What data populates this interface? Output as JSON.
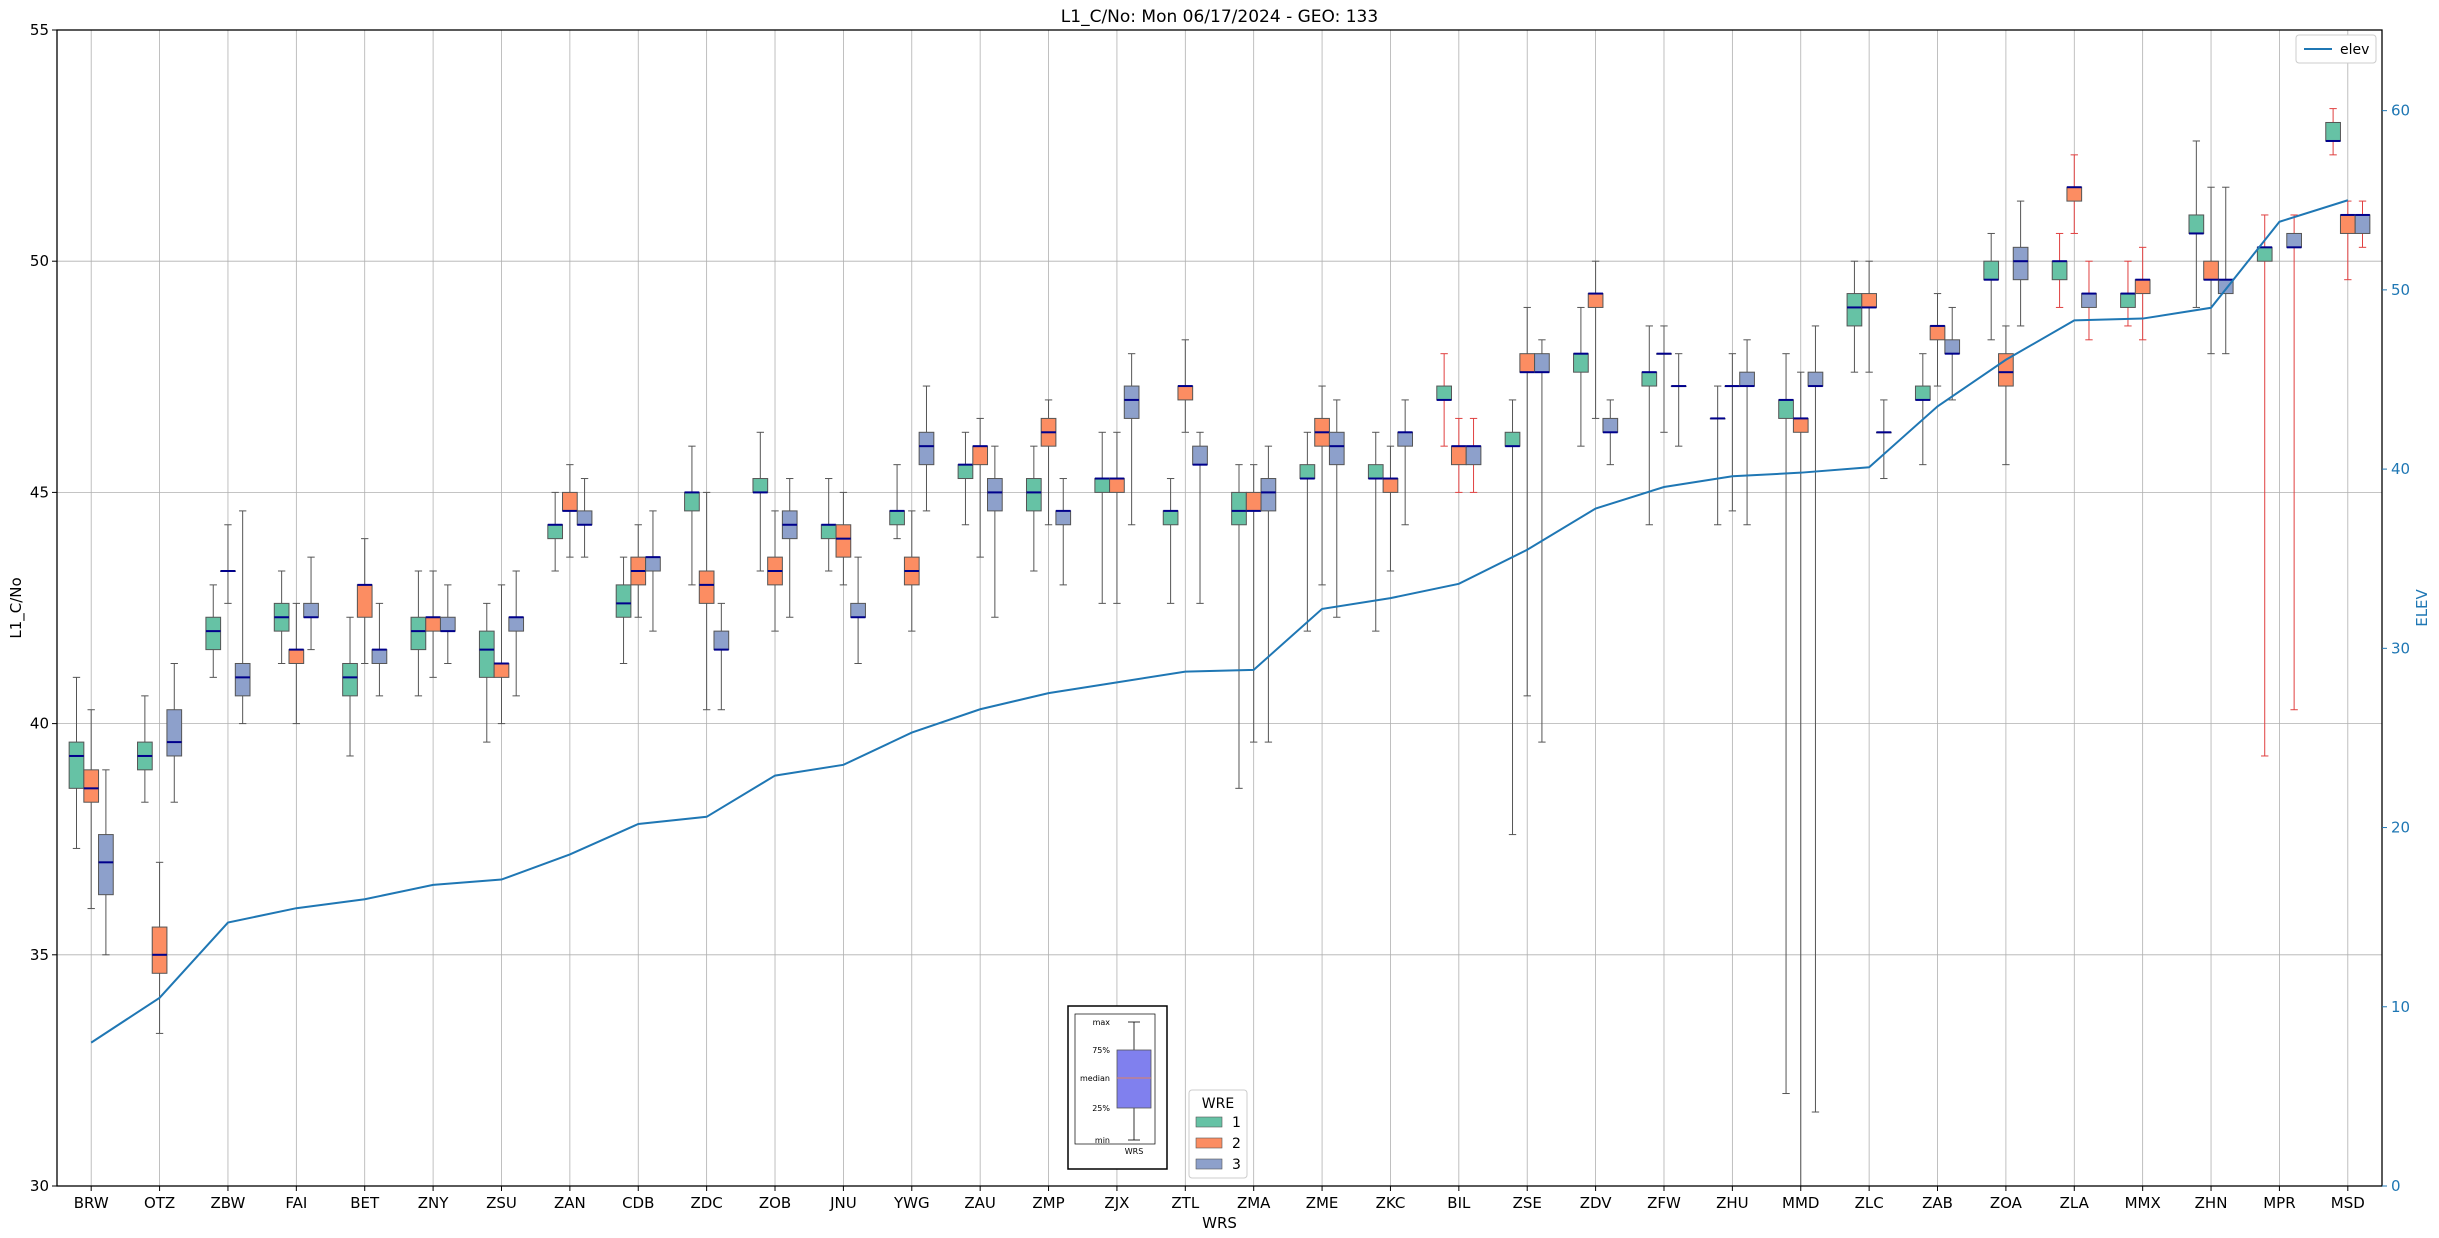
{
  "chart_data": {
    "type": "box",
    "title": "L1_C/No: Mon 06/17/2024 - GEO: 133",
    "xlabel": "WRS",
    "ylabel": "L1_C/No",
    "y2label": "ELEV",
    "ylim": [
      30,
      55
    ],
    "y2lim": [
      0,
      64.5
    ],
    "yticks": [
      30,
      35,
      40,
      45,
      50,
      55
    ],
    "y2ticks": [
      0,
      10,
      20,
      30,
      40,
      50,
      60
    ],
    "grid": true,
    "categories": [
      "BRW",
      "OTZ",
      "ZBW",
      "FAI",
      "BET",
      "ZNY",
      "ZSU",
      "ZAN",
      "CDB",
      "ZDC",
      "ZOB",
      "JNU",
      "YWG",
      "ZAU",
      "ZMP",
      "ZJX",
      "ZTL",
      "ZMA",
      "ZME",
      "ZKC",
      "BIL",
      "ZSE",
      "ZDV",
      "ZFW",
      "ZHU",
      "MMD",
      "ZLC",
      "ZAB",
      "ZOA",
      "ZLA",
      "MMX",
      "ZHN",
      "MPR",
      "MSD"
    ],
    "wre_series": [
      {
        "name": "1",
        "color": "#66c2a5"
      },
      {
        "name": "2",
        "color": "#fc8d62"
      },
      {
        "name": "3",
        "color": "#8da0cb"
      }
    ],
    "boxes": [
      {
        "cat": "BRW",
        "wre": 1,
        "min": 37.3,
        "q1": 38.6,
        "median": 39.3,
        "q3": 39.6,
        "max": 41.0
      },
      {
        "cat": "BRW",
        "wre": 2,
        "min": 36.0,
        "q1": 38.3,
        "median": 38.6,
        "q3": 39.0,
        "max": 40.3
      },
      {
        "cat": "BRW",
        "wre": 3,
        "min": 35.0,
        "q1": 36.3,
        "median": 37.0,
        "q3": 37.6,
        "max": 39.0
      },
      {
        "cat": "OTZ",
        "wre": 1,
        "min": 38.3,
        "q1": 39.0,
        "median": 39.3,
        "q3": 39.6,
        "max": 40.6
      },
      {
        "cat": "OTZ",
        "wre": 2,
        "min": 33.3,
        "q1": 34.6,
        "median": 35.0,
        "q3": 35.6,
        "max": 37.0
      },
      {
        "cat": "OTZ",
        "wre": 3,
        "min": 38.3,
        "q1": 39.3,
        "median": 39.6,
        "q3": 40.3,
        "max": 41.3
      },
      {
        "cat": "ZBW",
        "wre": 1,
        "min": 41.0,
        "q1": 41.6,
        "median": 42.0,
        "q3": 42.3,
        "max": 43.0
      },
      {
        "cat": "ZBW",
        "wre": 2,
        "min": 42.6,
        "q1": 43.3,
        "median": 43.3,
        "q3": 43.3,
        "max": 44.3
      },
      {
        "cat": "ZBW",
        "wre": 3,
        "min": 40.0,
        "q1": 40.6,
        "median": 41.0,
        "q3": 41.3,
        "max": 44.6
      },
      {
        "cat": "FAI",
        "wre": 1,
        "min": 41.3,
        "q1": 42.0,
        "median": 42.3,
        "q3": 42.6,
        "max": 43.3
      },
      {
        "cat": "FAI",
        "wre": 2,
        "min": 40.0,
        "q1": 41.3,
        "median": 41.6,
        "q3": 41.6,
        "max": 42.6
      },
      {
        "cat": "FAI",
        "wre": 3,
        "min": 41.6,
        "q1": 42.3,
        "median": 42.3,
        "q3": 42.6,
        "max": 43.6
      },
      {
        "cat": "BET",
        "wre": 1,
        "min": 39.3,
        "q1": 40.6,
        "median": 41.0,
        "q3": 41.3,
        "max": 42.3
      },
      {
        "cat": "BET",
        "wre": 2,
        "min": 41.3,
        "q1": 42.3,
        "median": 43.0,
        "q3": 43.0,
        "max": 44.0
      },
      {
        "cat": "BET",
        "wre": 3,
        "min": 40.6,
        "q1": 41.3,
        "median": 41.6,
        "q3": 41.6,
        "max": 42.6
      },
      {
        "cat": "ZNY",
        "wre": 1,
        "min": 40.6,
        "q1": 41.6,
        "median": 42.0,
        "q3": 42.3,
        "max": 43.3
      },
      {
        "cat": "ZNY",
        "wre": 2,
        "min": 41.0,
        "q1": 42.0,
        "median": 42.3,
        "q3": 42.3,
        "max": 43.3
      },
      {
        "cat": "ZNY",
        "wre": 3,
        "min": 41.3,
        "q1": 42.0,
        "median": 42.0,
        "q3": 42.3,
        "max": 43.0
      },
      {
        "cat": "ZSU",
        "wre": 1,
        "min": 39.6,
        "q1": 41.0,
        "median": 41.6,
        "q3": 42.0,
        "max": 42.6
      },
      {
        "cat": "ZSU",
        "wre": 2,
        "min": 40.0,
        "q1": 41.0,
        "median": 41.3,
        "q3": 41.3,
        "max": 43.0
      },
      {
        "cat": "ZSU",
        "wre": 3,
        "min": 40.6,
        "q1": 42.0,
        "median": 42.3,
        "q3": 42.3,
        "max": 43.3
      },
      {
        "cat": "ZAN",
        "wre": 1,
        "min": 43.3,
        "q1": 44.0,
        "median": 44.3,
        "q3": 44.3,
        "max": 45.0
      },
      {
        "cat": "ZAN",
        "wre": 2,
        "min": 43.6,
        "q1": 44.6,
        "median": 44.6,
        "q3": 45.0,
        "max": 45.6
      },
      {
        "cat": "ZAN",
        "wre": 3,
        "min": 43.6,
        "q1": 44.3,
        "median": 44.3,
        "q3": 44.6,
        "max": 45.3
      },
      {
        "cat": "CDB",
        "wre": 1,
        "min": 41.3,
        "q1": 42.3,
        "median": 42.6,
        "q3": 43.0,
        "max": 43.6
      },
      {
        "cat": "CDB",
        "wre": 2,
        "min": 42.3,
        "q1": 43.0,
        "median": 43.3,
        "q3": 43.6,
        "max": 44.3
      },
      {
        "cat": "CDB",
        "wre": 3,
        "min": 42.0,
        "q1": 43.3,
        "median": 43.6,
        "q3": 43.6,
        "max": 44.6
      },
      {
        "cat": "ZDC",
        "wre": 1,
        "min": 43.0,
        "q1": 44.6,
        "median": 45.0,
        "q3": 45.0,
        "max": 46.0
      },
      {
        "cat": "ZDC",
        "wre": 2,
        "min": 40.3,
        "q1": 42.6,
        "median": 43.0,
        "q3": 43.3,
        "max": 45.0
      },
      {
        "cat": "ZDC",
        "wre": 3,
        "min": 40.3,
        "q1": 41.6,
        "median": 41.6,
        "q3": 42.0,
        "max": 42.6
      },
      {
        "cat": "ZOB",
        "wre": 1,
        "min": 43.3,
        "q1": 45.0,
        "median": 45.0,
        "q3": 45.3,
        "max": 46.3
      },
      {
        "cat": "ZOB",
        "wre": 2,
        "min": 42.0,
        "q1": 43.0,
        "median": 43.3,
        "q3": 43.6,
        "max": 44.6
      },
      {
        "cat": "ZOB",
        "wre": 3,
        "min": 42.3,
        "q1": 44.0,
        "median": 44.3,
        "q3": 44.6,
        "max": 45.3
      },
      {
        "cat": "JNU",
        "wre": 1,
        "min": 43.3,
        "q1": 44.0,
        "median": 44.3,
        "q3": 44.3,
        "max": 45.3
      },
      {
        "cat": "JNU",
        "wre": 2,
        "min": 43.0,
        "q1": 43.6,
        "median": 44.0,
        "q3": 44.3,
        "max": 45.0
      },
      {
        "cat": "JNU",
        "wre": 3,
        "min": 41.3,
        "q1": 42.3,
        "median": 42.3,
        "q3": 42.6,
        "max": 43.6
      },
      {
        "cat": "YWG",
        "wre": 1,
        "min": 44.0,
        "q1": 44.3,
        "median": 44.6,
        "q3": 44.6,
        "max": 45.6
      },
      {
        "cat": "YWG",
        "wre": 2,
        "min": 42.0,
        "q1": 43.0,
        "median": 43.3,
        "q3": 43.6,
        "max": 44.6
      },
      {
        "cat": "YWG",
        "wre": 3,
        "min": 44.6,
        "q1": 45.6,
        "median": 46.0,
        "q3": 46.3,
        "max": 47.3
      },
      {
        "cat": "ZAU",
        "wre": 1,
        "min": 44.3,
        "q1": 45.3,
        "median": 45.6,
        "q3": 45.6,
        "max": 46.3
      },
      {
        "cat": "ZAU",
        "wre": 2,
        "min": 43.6,
        "q1": 45.6,
        "median": 46.0,
        "q3": 46.0,
        "max": 46.6
      },
      {
        "cat": "ZAU",
        "wre": 3,
        "min": 42.3,
        "q1": 44.6,
        "median": 45.0,
        "q3": 45.3,
        "max": 46.0
      },
      {
        "cat": "ZMP",
        "wre": 1,
        "min": 43.3,
        "q1": 44.6,
        "median": 45.0,
        "q3": 45.3,
        "max": 46.0
      },
      {
        "cat": "ZMP",
        "wre": 2,
        "min": 44.3,
        "q1": 46.0,
        "median": 46.3,
        "q3": 46.6,
        "max": 47.0
      },
      {
        "cat": "ZMP",
        "wre": 3,
        "min": 43.0,
        "q1": 44.3,
        "median": 44.6,
        "q3": 44.6,
        "max": 45.3
      },
      {
        "cat": "ZJX",
        "wre": 1,
        "min": 42.6,
        "q1": 45.0,
        "median": 45.3,
        "q3": 45.3,
        "max": 46.3
      },
      {
        "cat": "ZJX",
        "wre": 2,
        "min": 42.6,
        "q1": 45.0,
        "median": 45.3,
        "q3": 45.3,
        "max": 46.3
      },
      {
        "cat": "ZJX",
        "wre": 3,
        "min": 44.3,
        "q1": 46.6,
        "median": 47.0,
        "q3": 47.3,
        "max": 48.0
      },
      {
        "cat": "ZTL",
        "wre": 1,
        "min": 42.6,
        "q1": 44.3,
        "median": 44.6,
        "q3": 44.6,
        "max": 45.3
      },
      {
        "cat": "ZTL",
        "wre": 2,
        "min": 46.3,
        "q1": 47.0,
        "median": 47.3,
        "q3": 47.3,
        "max": 48.3
      },
      {
        "cat": "ZTL",
        "wre": 3,
        "min": 42.6,
        "q1": 45.6,
        "median": 45.6,
        "q3": 46.0,
        "max": 46.3
      },
      {
        "cat": "ZMA",
        "wre": 1,
        "min": 38.6,
        "q1": 44.3,
        "median": 44.6,
        "q3": 45.0,
        "max": 45.6
      },
      {
        "cat": "ZMA",
        "wre": 2,
        "min": 39.6,
        "q1": 44.6,
        "median": 44.6,
        "q3": 45.0,
        "max": 45.6
      },
      {
        "cat": "ZMA",
        "wre": 3,
        "min": 39.6,
        "q1": 44.6,
        "median": 45.0,
        "q3": 45.3,
        "max": 46.0
      },
      {
        "cat": "ZME",
        "wre": 1,
        "min": 42.0,
        "q1": 45.3,
        "median": 45.3,
        "q3": 45.6,
        "max": 46.3
      },
      {
        "cat": "ZME",
        "wre": 2,
        "min": 43.0,
        "q1": 46.0,
        "median": 46.3,
        "q3": 46.6,
        "max": 47.3
      },
      {
        "cat": "ZME",
        "wre": 3,
        "min": 42.3,
        "q1": 45.6,
        "median": 46.0,
        "q3": 46.3,
        "max": 47.0
      },
      {
        "cat": "ZKC",
        "wre": 1,
        "min": 42.0,
        "q1": 45.3,
        "median": 45.3,
        "q3": 45.6,
        "max": 46.3
      },
      {
        "cat": "ZKC",
        "wre": 2,
        "min": 43.3,
        "q1": 45.0,
        "median": 45.3,
        "q3": 45.3,
        "max": 46.0
      },
      {
        "cat": "ZKC",
        "wre": 3,
        "min": 44.3,
        "q1": 46.0,
        "median": 46.3,
        "q3": 46.3,
        "max": 47.0
      },
      {
        "cat": "BIL",
        "wre": 1,
        "min": 46.0,
        "q1": 47.0,
        "median": 47.0,
        "q3": 47.3,
        "max": 48.0
      },
      {
        "cat": "BIL",
        "wre": 2,
        "min": 45.0,
        "q1": 45.6,
        "median": 46.0,
        "q3": 46.0,
        "max": 46.6
      },
      {
        "cat": "BIL",
        "wre": 3,
        "min": 45.0,
        "q1": 45.6,
        "median": 46.0,
        "q3": 46.0,
        "max": 46.6
      },
      {
        "cat": "ZSE",
        "wre": 1,
        "min": 37.6,
        "q1": 46.0,
        "median": 46.0,
        "q3": 46.3,
        "max": 47.0
      },
      {
        "cat": "ZSE",
        "wre": 2,
        "min": 40.6,
        "q1": 47.6,
        "median": 47.6,
        "q3": 48.0,
        "max": 49.0
      },
      {
        "cat": "ZSE",
        "wre": 3,
        "min": 39.6,
        "q1": 47.6,
        "median": 47.6,
        "q3": 48.0,
        "max": 48.3
      },
      {
        "cat": "ZDV",
        "wre": 1,
        "min": 46.0,
        "q1": 47.6,
        "median": 48.0,
        "q3": 48.0,
        "max": 49.0
      },
      {
        "cat": "ZDV",
        "wre": 2,
        "min": 46.6,
        "q1": 49.0,
        "median": 49.3,
        "q3": 49.3,
        "max": 50.0
      },
      {
        "cat": "ZDV",
        "wre": 3,
        "min": 45.6,
        "q1": 46.3,
        "median": 46.3,
        "q3": 46.6,
        "max": 47.0
      },
      {
        "cat": "ZFW",
        "wre": 1,
        "min": 44.3,
        "q1": 47.3,
        "median": 47.6,
        "q3": 47.6,
        "max": 48.6
      },
      {
        "cat": "ZFW",
        "wre": 2,
        "min": 46.3,
        "q1": 48.0,
        "median": 48.0,
        "q3": 48.0,
        "max": 48.6
      },
      {
        "cat": "ZFW",
        "wre": 3,
        "min": 46.0,
        "q1": 47.3,
        "median": 47.3,
        "q3": 47.3,
        "max": 48.0
      },
      {
        "cat": "ZHU",
        "wre": 1,
        "min": 44.3,
        "q1": 46.6,
        "median": 46.6,
        "q3": 46.6,
        "max": 47.3
      },
      {
        "cat": "ZHU",
        "wre": 2,
        "min": 44.6,
        "q1": 47.3,
        "median": 47.3,
        "q3": 47.3,
        "max": 48.0
      },
      {
        "cat": "ZHU",
        "wre": 3,
        "min": 44.3,
        "q1": 47.3,
        "median": 47.3,
        "q3": 47.6,
        "max": 48.3
      },
      {
        "cat": "MMD",
        "wre": 1,
        "min": 32.0,
        "q1": 46.6,
        "median": 47.0,
        "q3": 47.0,
        "max": 48.0
      },
      {
        "cat": "MMD",
        "wre": 2,
        "min": 30.0,
        "q1": 46.3,
        "median": 46.6,
        "q3": 46.6,
        "max": 47.6
      },
      {
        "cat": "MMD",
        "wre": 3,
        "min": 31.6,
        "q1": 47.3,
        "median": 47.3,
        "q3": 47.6,
        "max": 48.6
      },
      {
        "cat": "ZLC",
        "wre": 1,
        "min": 47.6,
        "q1": 48.6,
        "median": 49.0,
        "q3": 49.3,
        "max": 50.0
      },
      {
        "cat": "ZLC",
        "wre": 2,
        "min": 47.6,
        "q1": 49.0,
        "median": 49.0,
        "q3": 49.3,
        "max": 50.0
      },
      {
        "cat": "ZLC",
        "wre": 3,
        "min": 45.3,
        "q1": 46.3,
        "median": 46.3,
        "q3": 46.3,
        "max": 47.0
      },
      {
        "cat": "ZAB",
        "wre": 1,
        "min": 45.6,
        "q1": 47.0,
        "median": 47.0,
        "q3": 47.3,
        "max": 48.0
      },
      {
        "cat": "ZAB",
        "wre": 2,
        "min": 47.3,
        "q1": 48.3,
        "median": 48.6,
        "q3": 48.6,
        "max": 49.3
      },
      {
        "cat": "ZAB",
        "wre": 3,
        "min": 47.0,
        "q1": 48.0,
        "median": 48.0,
        "q3": 48.3,
        "max": 49.0
      },
      {
        "cat": "ZOA",
        "wre": 1,
        "min": 48.3,
        "q1": 49.6,
        "median": 49.6,
        "q3": 50.0,
        "max": 50.6
      },
      {
        "cat": "ZOA",
        "wre": 2,
        "min": 45.6,
        "q1": 47.3,
        "median": 47.6,
        "q3": 48.0,
        "max": 48.6
      },
      {
        "cat": "ZOA",
        "wre": 3,
        "min": 48.6,
        "q1": 49.6,
        "median": 50.0,
        "q3": 50.3,
        "max": 51.3
      },
      {
        "cat": "ZLA",
        "wre": 1,
        "min": 49.0,
        "q1": 49.6,
        "median": 50.0,
        "q3": 50.0,
        "max": 50.6
      },
      {
        "cat": "ZLA",
        "wre": 2,
        "min": 50.6,
        "q1": 51.3,
        "median": 51.6,
        "q3": 51.6,
        "max": 52.3
      },
      {
        "cat": "ZLA",
        "wre": 3,
        "min": 48.3,
        "q1": 49.0,
        "median": 49.3,
        "q3": 49.3,
        "max": 50.0
      },
      {
        "cat": "MMX",
        "wre": 1,
        "min": 48.6,
        "q1": 49.0,
        "median": 49.3,
        "q3": 49.3,
        "max": 50.0
      },
      {
        "cat": "MMX",
        "wre": 2,
        "min": 48.3,
        "q1": 49.3,
        "median": 49.6,
        "q3": 49.6,
        "max": 50.3
      },
      {
        "cat": "MMX",
        "wre": 3,
        "min": null,
        "q1": null,
        "median": null,
        "q3": null,
        "max": null
      },
      {
        "cat": "ZHN",
        "wre": 1,
        "min": 49.0,
        "q1": 50.6,
        "median": 50.6,
        "q3": 51.0,
        "max": 52.6
      },
      {
        "cat": "ZHN",
        "wre": 2,
        "min": 48.0,
        "q1": 49.6,
        "median": 49.6,
        "q3": 50.0,
        "max": 51.6
      },
      {
        "cat": "ZHN",
        "wre": 3,
        "min": 48.0,
        "q1": 49.3,
        "median": 49.6,
        "q3": 49.6,
        "max": 51.6
      },
      {
        "cat": "MPR",
        "wre": 1,
        "min": 39.3,
        "q1": 50.0,
        "median": 50.3,
        "q3": 50.3,
        "max": 51.0
      },
      {
        "cat": "MPR",
        "wre": 2,
        "min": null,
        "q1": null,
        "median": null,
        "q3": null,
        "max": null
      },
      {
        "cat": "MPR",
        "wre": 3,
        "min": 40.3,
        "q1": 50.3,
        "median": 50.3,
        "q3": 50.6,
        "max": 51.0
      },
      {
        "cat": "MSD",
        "wre": 1,
        "min": 52.3,
        "q1": 52.6,
        "median": 52.6,
        "q3": 53.0,
        "max": 53.3
      },
      {
        "cat": "MSD",
        "wre": 2,
        "min": 49.6,
        "q1": 50.6,
        "median": 51.0,
        "q3": 51.0,
        "max": 51.3
      },
      {
        "cat": "MSD",
        "wre": 3,
        "min": 50.3,
        "q1": 50.6,
        "median": 51.0,
        "q3": 51.0,
        "max": 51.3
      }
    ],
    "elev_line": {
      "name": "elev",
      "color": "#1f77b4",
      "values": [
        8.0,
        10.5,
        14.7,
        15.5,
        16.0,
        16.8,
        17.1,
        18.5,
        20.2,
        20.6,
        22.9,
        23.5,
        25.3,
        26.6,
        27.5,
        28.1,
        28.7,
        28.8,
        32.2,
        32.8,
        33.6,
        35.5,
        37.8,
        39.0,
        39.6,
        39.8,
        40.1,
        43.5,
        46.1,
        48.3,
        48.4,
        49.0,
        53.8,
        55.0
      ]
    },
    "wre_legend": {
      "title": "WRE",
      "labels": [
        "1",
        "2",
        "3"
      ],
      "position": "bottom-center"
    },
    "elev_legend": {
      "label": "elev",
      "position": "top-right"
    },
    "inset_key": {
      "labels": [
        "max",
        "75%",
        "median",
        "25%",
        "min"
      ],
      "xlabel": "WRS",
      "position": "bottom-center"
    }
  }
}
